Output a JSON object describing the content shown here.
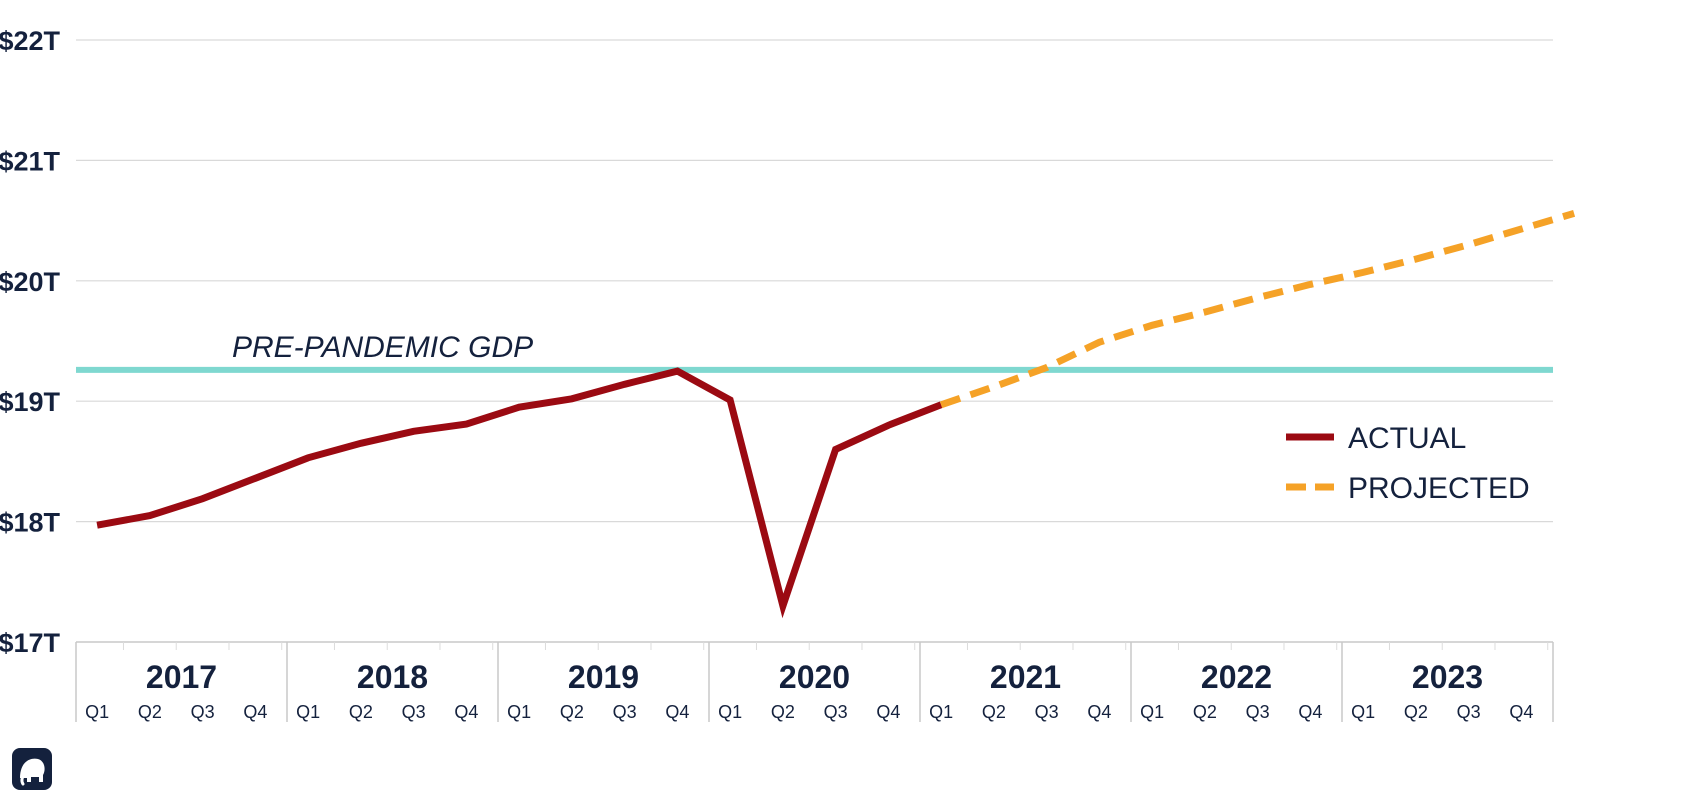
{
  "chart_data": {
    "type": "line",
    "ylim": [
      17,
      22
    ],
    "yticks": [
      {
        "value": 17,
        "label": "$17T"
      },
      {
        "value": 18,
        "label": "$18T"
      },
      {
        "value": 19,
        "label": "$19T"
      },
      {
        "value": 20,
        "label": "$20T"
      },
      {
        "value": 21,
        "label": "$21T"
      },
      {
        "value": 22,
        "label": "$22T"
      }
    ],
    "grid": true,
    "years": [
      "2017",
      "2018",
      "2019",
      "2020",
      "2021",
      "2022",
      "2023"
    ],
    "quarters": [
      "Q1",
      "Q2",
      "Q3",
      "Q4"
    ],
    "reference_line": {
      "value": 19.26,
      "label": "PRE-PANDEMIC GDP",
      "color": "#7fd8d0"
    },
    "series": [
      {
        "name": "ACTUAL",
        "style": "solid",
        "color": "#9b0a12",
        "values": [
          17.97,
          18.05,
          18.19,
          18.36,
          18.53,
          18.65,
          18.75,
          18.81,
          18.95,
          19.02,
          19.14,
          19.25,
          19.01,
          17.3,
          18.6,
          18.8,
          18.97
        ]
      },
      {
        "name": "PROJECTED",
        "style": "dashed",
        "color": "#f5a227",
        "start_index": 16,
        "values": [
          18.97,
          19.12,
          19.28,
          19.49,
          19.63,
          19.74,
          19.86,
          19.97,
          20.07,
          20.18,
          20.3,
          20.43,
          20.56
        ]
      }
    ],
    "legend_position": "right"
  }
}
